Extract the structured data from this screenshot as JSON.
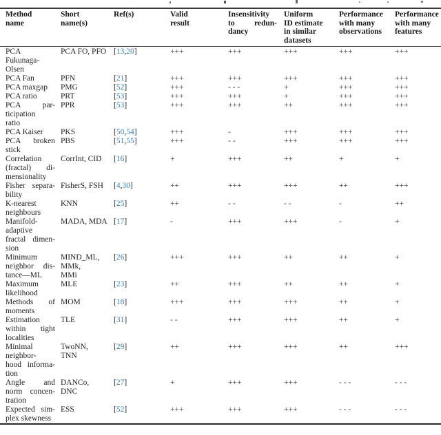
{
  "colors": {
    "background": "#ffffff",
    "text": "#1f1f1f",
    "rule": "#3a3a3a",
    "ref_link": "#2e82bb",
    "rating": "#383838"
  },
  "table": {
    "headers": [
      {
        "id": "method-name",
        "lines": [
          "Method",
          "name"
        ]
      },
      {
        "id": "short-names",
        "lines": [
          "Short",
          "name(s)"
        ]
      },
      {
        "id": "refs",
        "lines": [
          "Ref(s)"
        ]
      },
      {
        "id": "valid-result",
        "lines": [
          "Valid",
          "result"
        ]
      },
      {
        "id": "insensitivity",
        "lines": [
          "Insensitivity",
          "to redun-",
          "dancy"
        ],
        "justify": true
      },
      {
        "id": "uniform-id",
        "lines": [
          "Uniform",
          "ID estimate",
          "in similar",
          "datasets"
        ]
      },
      {
        "id": "perf-observations",
        "lines": [
          "Performance",
          "with many",
          "observations"
        ]
      },
      {
        "id": "perf-features",
        "lines": [
          "Performance",
          "with many",
          "features"
        ]
      }
    ],
    "rating_cell_names": [
      "valid-result-cell",
      "insensitivity-cell",
      "uniform-id-cell",
      "perf-observations-cell",
      "perf-features-cell"
    ],
    "rows": [
      {
        "method_lines": [
          "PCA",
          "Fukunaga-",
          "Olsen"
        ],
        "short_lines": [
          "PCA FO, PFO"
        ],
        "refs": [
          "13",
          "20"
        ],
        "ratings": [
          "+++",
          "+++",
          "+++",
          "+++",
          "+++"
        ]
      },
      {
        "method_lines": [
          "PCA Fan"
        ],
        "short_lines": [
          "PFN"
        ],
        "refs": [
          "21"
        ],
        "ratings": [
          "+++",
          "+++",
          "+++",
          "+++",
          "+++"
        ]
      },
      {
        "method_lines": [
          "PCA maxgap"
        ],
        "short_lines": [
          "PMG"
        ],
        "refs": [
          "52"
        ],
        "ratings": [
          "+++",
          "- - -",
          "+",
          "+++",
          "+++"
        ]
      },
      {
        "method_lines": [
          "PCA ratio"
        ],
        "short_lines": [
          "PRT"
        ],
        "refs": [
          "53"
        ],
        "ratings": [
          "+++",
          "+++",
          "+",
          "+++",
          "+++"
        ]
      },
      {
        "method_lines": [
          "PCA par-",
          "ticipation",
          "ratio"
        ],
        "short_lines": [
          "PPR"
        ],
        "refs": [
          "53"
        ],
        "ratings": [
          "+++",
          "+++",
          "++",
          "+++",
          "+++"
        ]
      },
      {
        "method_lines": [
          "PCA Kaiser"
        ],
        "short_lines": [
          "PKS"
        ],
        "refs": [
          "50",
          "54"
        ],
        "ratings": [
          "+++",
          "-",
          "+++",
          "+++",
          "+++"
        ]
      },
      {
        "method_lines": [
          "PCA broken",
          "stick"
        ],
        "short_lines": [
          "PBS"
        ],
        "refs": [
          "51",
          "55"
        ],
        "ratings": [
          "+++",
          "- -",
          "+++",
          "+++",
          "+++"
        ]
      },
      {
        "method_lines": [
          "Correlation",
          "(fractal) di-",
          "mensionality"
        ],
        "short_lines": [
          "CorrInt, CID"
        ],
        "refs": [
          "16"
        ],
        "ratings": [
          "+",
          "+++",
          "++",
          "+",
          "+"
        ]
      },
      {
        "method_lines": [
          "Fisher separa-",
          "bility"
        ],
        "short_lines": [
          "FisherS, FSH"
        ],
        "refs": [
          "4",
          "30"
        ],
        "ratings": [
          "++",
          "+++",
          "+++",
          "++",
          "+++"
        ]
      },
      {
        "method_lines": [
          "K-nearest",
          "neighbours"
        ],
        "short_lines": [
          "KNN"
        ],
        "refs": [
          "25"
        ],
        "ratings": [
          "++",
          "- -",
          "- -",
          "-",
          "++"
        ]
      },
      {
        "method_lines": [
          "Manifold-",
          "adaptive",
          "fractal dimen-",
          "sion"
        ],
        "short_lines": [
          "MADA, MDA"
        ],
        "refs": [
          "17"
        ],
        "ratings": [
          "-",
          "+++",
          "+++",
          "-",
          "+"
        ]
      },
      {
        "method_lines": [
          "Minimum",
          "neighbor dis-",
          "tance—ML"
        ],
        "short_lines": [
          "MIND_ML,",
          "MMk,",
          "MMi"
        ],
        "refs": [
          "26"
        ],
        "ratings": [
          "+++",
          "+++",
          "++",
          "++",
          "+"
        ]
      },
      {
        "method_lines": [
          "Maximum",
          "likelihood"
        ],
        "short_lines": [
          "MLE"
        ],
        "refs": [
          "23"
        ],
        "ratings": [
          "++",
          "+++",
          "++",
          "++",
          "+"
        ]
      },
      {
        "method_lines": [
          "Methods of",
          "moments"
        ],
        "short_lines": [
          "MOM"
        ],
        "refs": [
          "18"
        ],
        "ratings": [
          "+++",
          "+++",
          "+++",
          "++",
          "+"
        ]
      },
      {
        "method_lines": [
          "Estimation",
          "within tight",
          "localities"
        ],
        "short_lines": [
          "TLE"
        ],
        "refs": [
          "31"
        ],
        "ratings": [
          "- -",
          "+++",
          "+++",
          "++",
          "+"
        ]
      },
      {
        "method_lines": [
          "Minimal",
          "neighbor-",
          "hood informa-",
          "tion"
        ],
        "short_lines": [
          "TwoNN,",
          "TNN"
        ],
        "refs": [
          "29"
        ],
        "ratings": [
          "++",
          "+++",
          "+++",
          "++",
          "+++"
        ]
      },
      {
        "method_lines": [
          "Angle and",
          "norm concen-",
          "tration"
        ],
        "short_lines": [
          "DANCo,",
          "DNC"
        ],
        "refs": [
          "27"
        ],
        "ratings": [
          "+",
          "+++",
          "+++",
          "- - -",
          "- - -"
        ]
      },
      {
        "method_lines": [
          "Expected sim-",
          "plex skewness"
        ],
        "short_lines": [
          "ESS"
        ],
        "refs": [
          "52"
        ],
        "ratings": [
          "+++",
          "+++",
          "+++",
          "- - -",
          "- - -"
        ]
      }
    ]
  }
}
